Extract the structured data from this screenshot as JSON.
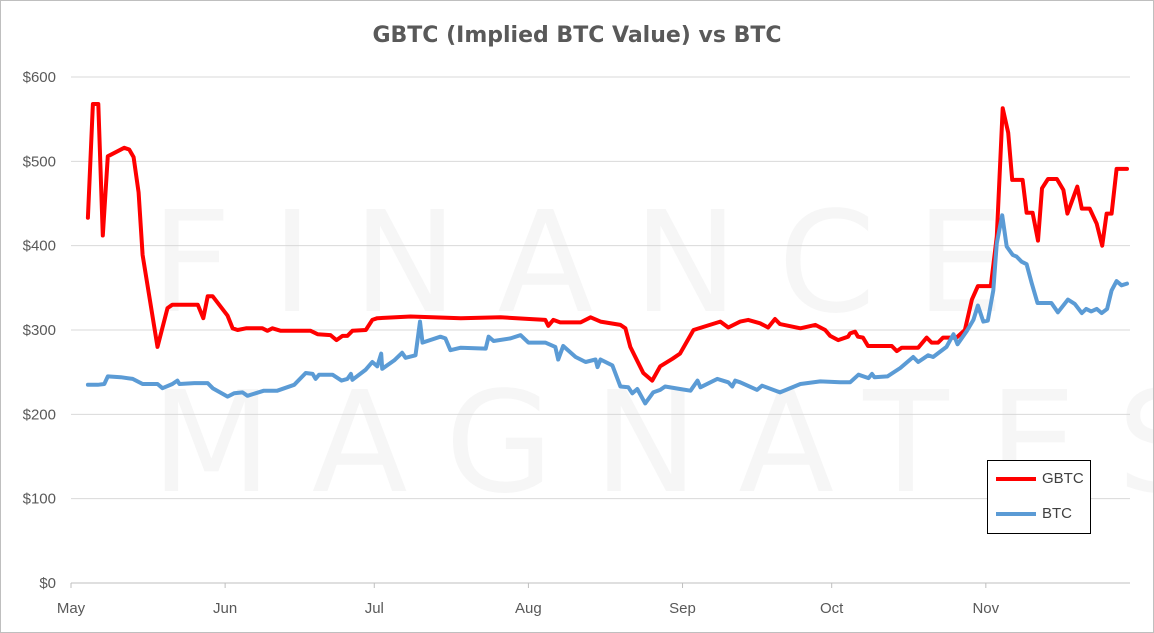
{
  "chart_data": {
    "type": "line",
    "title": "GBTC (Implied BTC Value) vs BTC",
    "xlabel": "",
    "ylabel": "",
    "x_unit": "days since May 1",
    "xlim": [
      0,
      213
    ],
    "ylim": [
      0,
      600
    ],
    "grid": true,
    "legend_position": "bottom-right",
    "y_ticks": [
      0,
      100,
      200,
      300,
      400,
      500,
      600
    ],
    "y_tick_labels": [
      "$0",
      "$100",
      "$200",
      "$300",
      "$400",
      "$500",
      "$600"
    ],
    "x_ticks": [
      0,
      31,
      61,
      92,
      123,
      153,
      184
    ],
    "x_tick_labels": [
      "May",
      "Jun",
      "Jul",
      "Aug",
      "Sep",
      "Oct",
      "Nov"
    ],
    "watermark": [
      "FINANCE",
      "MAGNATES"
    ],
    "series": [
      {
        "name": "GBTC",
        "color": "#ff0000",
        "points": [
          [
            3.4,
            433
          ],
          [
            4.4,
            568
          ],
          [
            5.5,
            568
          ],
          [
            6.4,
            412
          ],
          [
            7.4,
            506
          ],
          [
            10.7,
            516
          ],
          [
            11.7,
            514
          ],
          [
            12.6,
            505
          ],
          [
            13.6,
            463
          ],
          [
            14.4,
            389
          ],
          [
            17.4,
            280
          ],
          [
            19.4,
            326
          ],
          [
            20.4,
            330
          ],
          [
            25.5,
            330
          ],
          [
            26.6,
            314
          ],
          [
            27.5,
            340
          ],
          [
            28.5,
            340
          ],
          [
            31.5,
            317
          ],
          [
            32.5,
            302
          ],
          [
            33.5,
            300
          ],
          [
            35.2,
            302
          ],
          [
            38.5,
            302
          ],
          [
            39.5,
            299
          ],
          [
            40.5,
            302
          ],
          [
            42.2,
            299
          ],
          [
            48.2,
            299
          ],
          [
            49.6,
            295
          ],
          [
            52.2,
            294
          ],
          [
            53.4,
            288
          ],
          [
            54.6,
            293
          ],
          [
            55.6,
            293
          ],
          [
            56.6,
            299
          ],
          [
            59.3,
            300
          ],
          [
            60.6,
            312
          ],
          [
            61.6,
            314
          ],
          [
            68.3,
            316
          ],
          [
            78.4,
            314
          ],
          [
            86.4,
            315
          ],
          [
            92.2,
            313
          ],
          [
            95.4,
            312
          ],
          [
            96.0,
            305
          ],
          [
            97.0,
            312
          ],
          [
            98.4,
            309
          ],
          [
            102.5,
            309
          ],
          [
            104.5,
            315
          ],
          [
            106.5,
            310
          ],
          [
            110.5,
            306
          ],
          [
            111.5,
            302
          ],
          [
            112.5,
            280
          ],
          [
            115.1,
            249
          ],
          [
            116.9,
            240
          ],
          [
            118.5,
            257
          ],
          [
            121,
            266
          ],
          [
            122.5,
            272
          ],
          [
            125.2,
            300
          ],
          [
            130.6,
            310
          ],
          [
            132.2,
            303
          ],
          [
            134.6,
            310
          ],
          [
            136.2,
            312
          ],
          [
            138.6,
            308
          ],
          [
            140.2,
            303
          ],
          [
            141.6,
            313
          ],
          [
            142.6,
            307
          ],
          [
            146.7,
            302
          ],
          [
            149.7,
            306
          ],
          [
            151.7,
            300
          ],
          [
            152.7,
            293
          ],
          [
            154.3,
            288
          ],
          [
            156.3,
            292
          ],
          [
            156.7,
            296
          ],
          [
            157.7,
            298
          ],
          [
            158.3,
            292
          ],
          [
            159.3,
            291
          ],
          [
            160.3,
            281
          ],
          [
            165.1,
            281
          ],
          [
            166.1,
            275
          ],
          [
            167.1,
            279
          ],
          [
            170.4,
            279
          ],
          [
            172.1,
            291
          ],
          [
            173.1,
            285
          ],
          [
            174.4,
            285
          ],
          [
            175.4,
            291
          ],
          [
            178.1,
            291
          ],
          [
            179.8,
            300
          ],
          [
            181.2,
            336
          ],
          [
            182.4,
            352
          ],
          [
            185,
            352
          ],
          [
            186.2,
            411
          ],
          [
            187.4,
            563
          ],
          [
            188.5,
            534
          ],
          [
            189.3,
            478
          ],
          [
            191.4,
            478
          ],
          [
            192.2,
            439
          ],
          [
            193.4,
            439
          ],
          [
            194.5,
            406
          ],
          [
            195.3,
            468
          ],
          [
            196.5,
            479
          ],
          [
            198.3,
            479
          ],
          [
            199.6,
            466
          ],
          [
            200.4,
            438
          ],
          [
            202.4,
            470
          ],
          [
            203.3,
            444
          ],
          [
            204.9,
            444
          ],
          [
            206.3,
            426
          ],
          [
            207.4,
            400
          ],
          [
            208.3,
            438
          ],
          [
            209.3,
            438
          ],
          [
            210.3,
            491
          ],
          [
            212.4,
            491
          ]
        ]
      },
      {
        "name": "BTC",
        "color": "#5b9bd5",
        "points": [
          [
            3.4,
            235
          ],
          [
            5.4,
            235
          ],
          [
            6.7,
            236
          ],
          [
            7.4,
            245
          ],
          [
            10,
            244
          ],
          [
            12.4,
            242
          ],
          [
            14.4,
            236
          ],
          [
            17.4,
            236
          ],
          [
            18.4,
            231
          ],
          [
            20.4,
            236
          ],
          [
            21.4,
            240
          ],
          [
            21.8,
            236
          ],
          [
            24.8,
            237
          ],
          [
            27.5,
            237
          ],
          [
            28.5,
            231
          ],
          [
            31.5,
            221
          ],
          [
            32.8,
            225
          ],
          [
            34.5,
            226
          ],
          [
            35.5,
            222
          ],
          [
            38.8,
            228
          ],
          [
            41.5,
            228
          ],
          [
            44.9,
            235
          ],
          [
            47.2,
            249
          ],
          [
            48.6,
            248
          ],
          [
            49.2,
            242
          ],
          [
            49.9,
            247
          ],
          [
            52.6,
            247
          ],
          [
            54.4,
            240
          ],
          [
            55.6,
            242
          ],
          [
            56.3,
            248
          ],
          [
            56.6,
            241
          ],
          [
            59.3,
            253
          ],
          [
            60.6,
            262
          ],
          [
            61.6,
            257
          ],
          [
            62.4,
            272
          ],
          [
            62.6,
            254
          ],
          [
            65,
            264
          ],
          [
            66.6,
            273
          ],
          [
            67.3,
            267
          ],
          [
            69.3,
            270
          ],
          [
            70.2,
            310
          ],
          [
            70.7,
            285
          ],
          [
            74.3,
            292
          ],
          [
            75.3,
            290
          ],
          [
            76.3,
            276
          ],
          [
            78.4,
            279
          ],
          [
            83.4,
            278
          ],
          [
            84,
            292
          ],
          [
            85,
            287
          ],
          [
            88.4,
            290
          ],
          [
            90.4,
            294
          ],
          [
            92,
            285
          ],
          [
            95.4,
            285
          ],
          [
            97.4,
            280
          ],
          [
            98,
            265
          ],
          [
            99,
            281
          ],
          [
            101.5,
            268
          ],
          [
            103.5,
            262
          ],
          [
            105.5,
            265
          ],
          [
            105.9,
            256
          ],
          [
            106.5,
            265
          ],
          [
            108.9,
            258
          ],
          [
            110.5,
            233
          ],
          [
            112.1,
            232
          ],
          [
            112.9,
            225
          ],
          [
            113.9,
            230
          ],
          [
            115.5,
            213
          ],
          [
            117.1,
            226
          ],
          [
            118.5,
            229
          ],
          [
            119.5,
            233
          ],
          [
            122.5,
            230
          ],
          [
            124.6,
            228
          ],
          [
            126,
            240
          ],
          [
            126.6,
            232
          ],
          [
            130,
            242
          ],
          [
            132.2,
            238
          ],
          [
            133,
            233
          ],
          [
            133.6,
            240
          ],
          [
            134.6,
            238
          ],
          [
            138,
            229
          ],
          [
            139,
            234
          ],
          [
            142.6,
            226
          ],
          [
            146.7,
            236
          ],
          [
            150.7,
            239
          ],
          [
            154.7,
            238
          ],
          [
            156.7,
            238
          ],
          [
            158.4,
            247
          ],
          [
            160.4,
            243
          ],
          [
            161.1,
            248
          ],
          [
            161.6,
            244
          ],
          [
            164.2,
            245
          ],
          [
            166.8,
            255
          ],
          [
            169.4,
            268
          ],
          [
            170.4,
            262
          ],
          [
            172.4,
            270
          ],
          [
            173.4,
            268
          ],
          [
            176.1,
            280
          ],
          [
            177.5,
            295
          ],
          [
            178.3,
            283
          ],
          [
            180.2,
            299
          ],
          [
            181.5,
            312
          ],
          [
            182.4,
            329
          ],
          [
            183.5,
            310
          ],
          [
            184.4,
            311
          ],
          [
            185.5,
            347
          ],
          [
            186.2,
            403
          ],
          [
            187.3,
            436
          ],
          [
            188.2,
            399
          ],
          [
            189.4,
            389
          ],
          [
            190.2,
            387
          ],
          [
            191.2,
            381
          ],
          [
            192.2,
            378
          ],
          [
            193.2,
            356
          ],
          [
            194.4,
            332
          ],
          [
            197.2,
            332
          ],
          [
            198.5,
            321
          ],
          [
            200.5,
            336
          ],
          [
            201.9,
            331
          ],
          [
            203.3,
            320
          ],
          [
            204.2,
            325
          ],
          [
            205.2,
            322
          ],
          [
            206.3,
            325
          ],
          [
            207.3,
            320
          ],
          [
            208.4,
            325
          ],
          [
            209.3,
            347
          ],
          [
            210.3,
            358
          ],
          [
            211.3,
            353
          ],
          [
            212.4,
            355
          ]
        ]
      }
    ]
  }
}
